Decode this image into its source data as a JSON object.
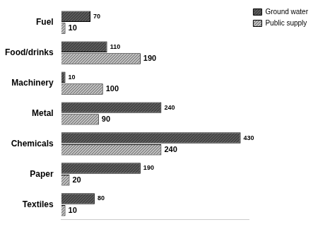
{
  "chart_data": {
    "type": "bar",
    "orientation": "horizontal",
    "categories": [
      "Fuel",
      "Food/drinks",
      "Machinery",
      "Metal",
      "Chemicals",
      "Paper",
      "Textiles"
    ],
    "series": [
      {
        "name": "Ground water",
        "color": "#5a5a5a",
        "values": [
          70,
          110,
          10,
          240,
          430,
          190,
          80
        ]
      },
      {
        "name": "Public supply",
        "color": "#bdbdbd",
        "values": [
          10,
          190,
          100,
          90,
          240,
          20,
          10
        ]
      }
    ],
    "xlim": [
      0,
      450
    ],
    "grid": false,
    "legend": "right",
    "data_labels": true,
    "tick_labels": "y"
  }
}
